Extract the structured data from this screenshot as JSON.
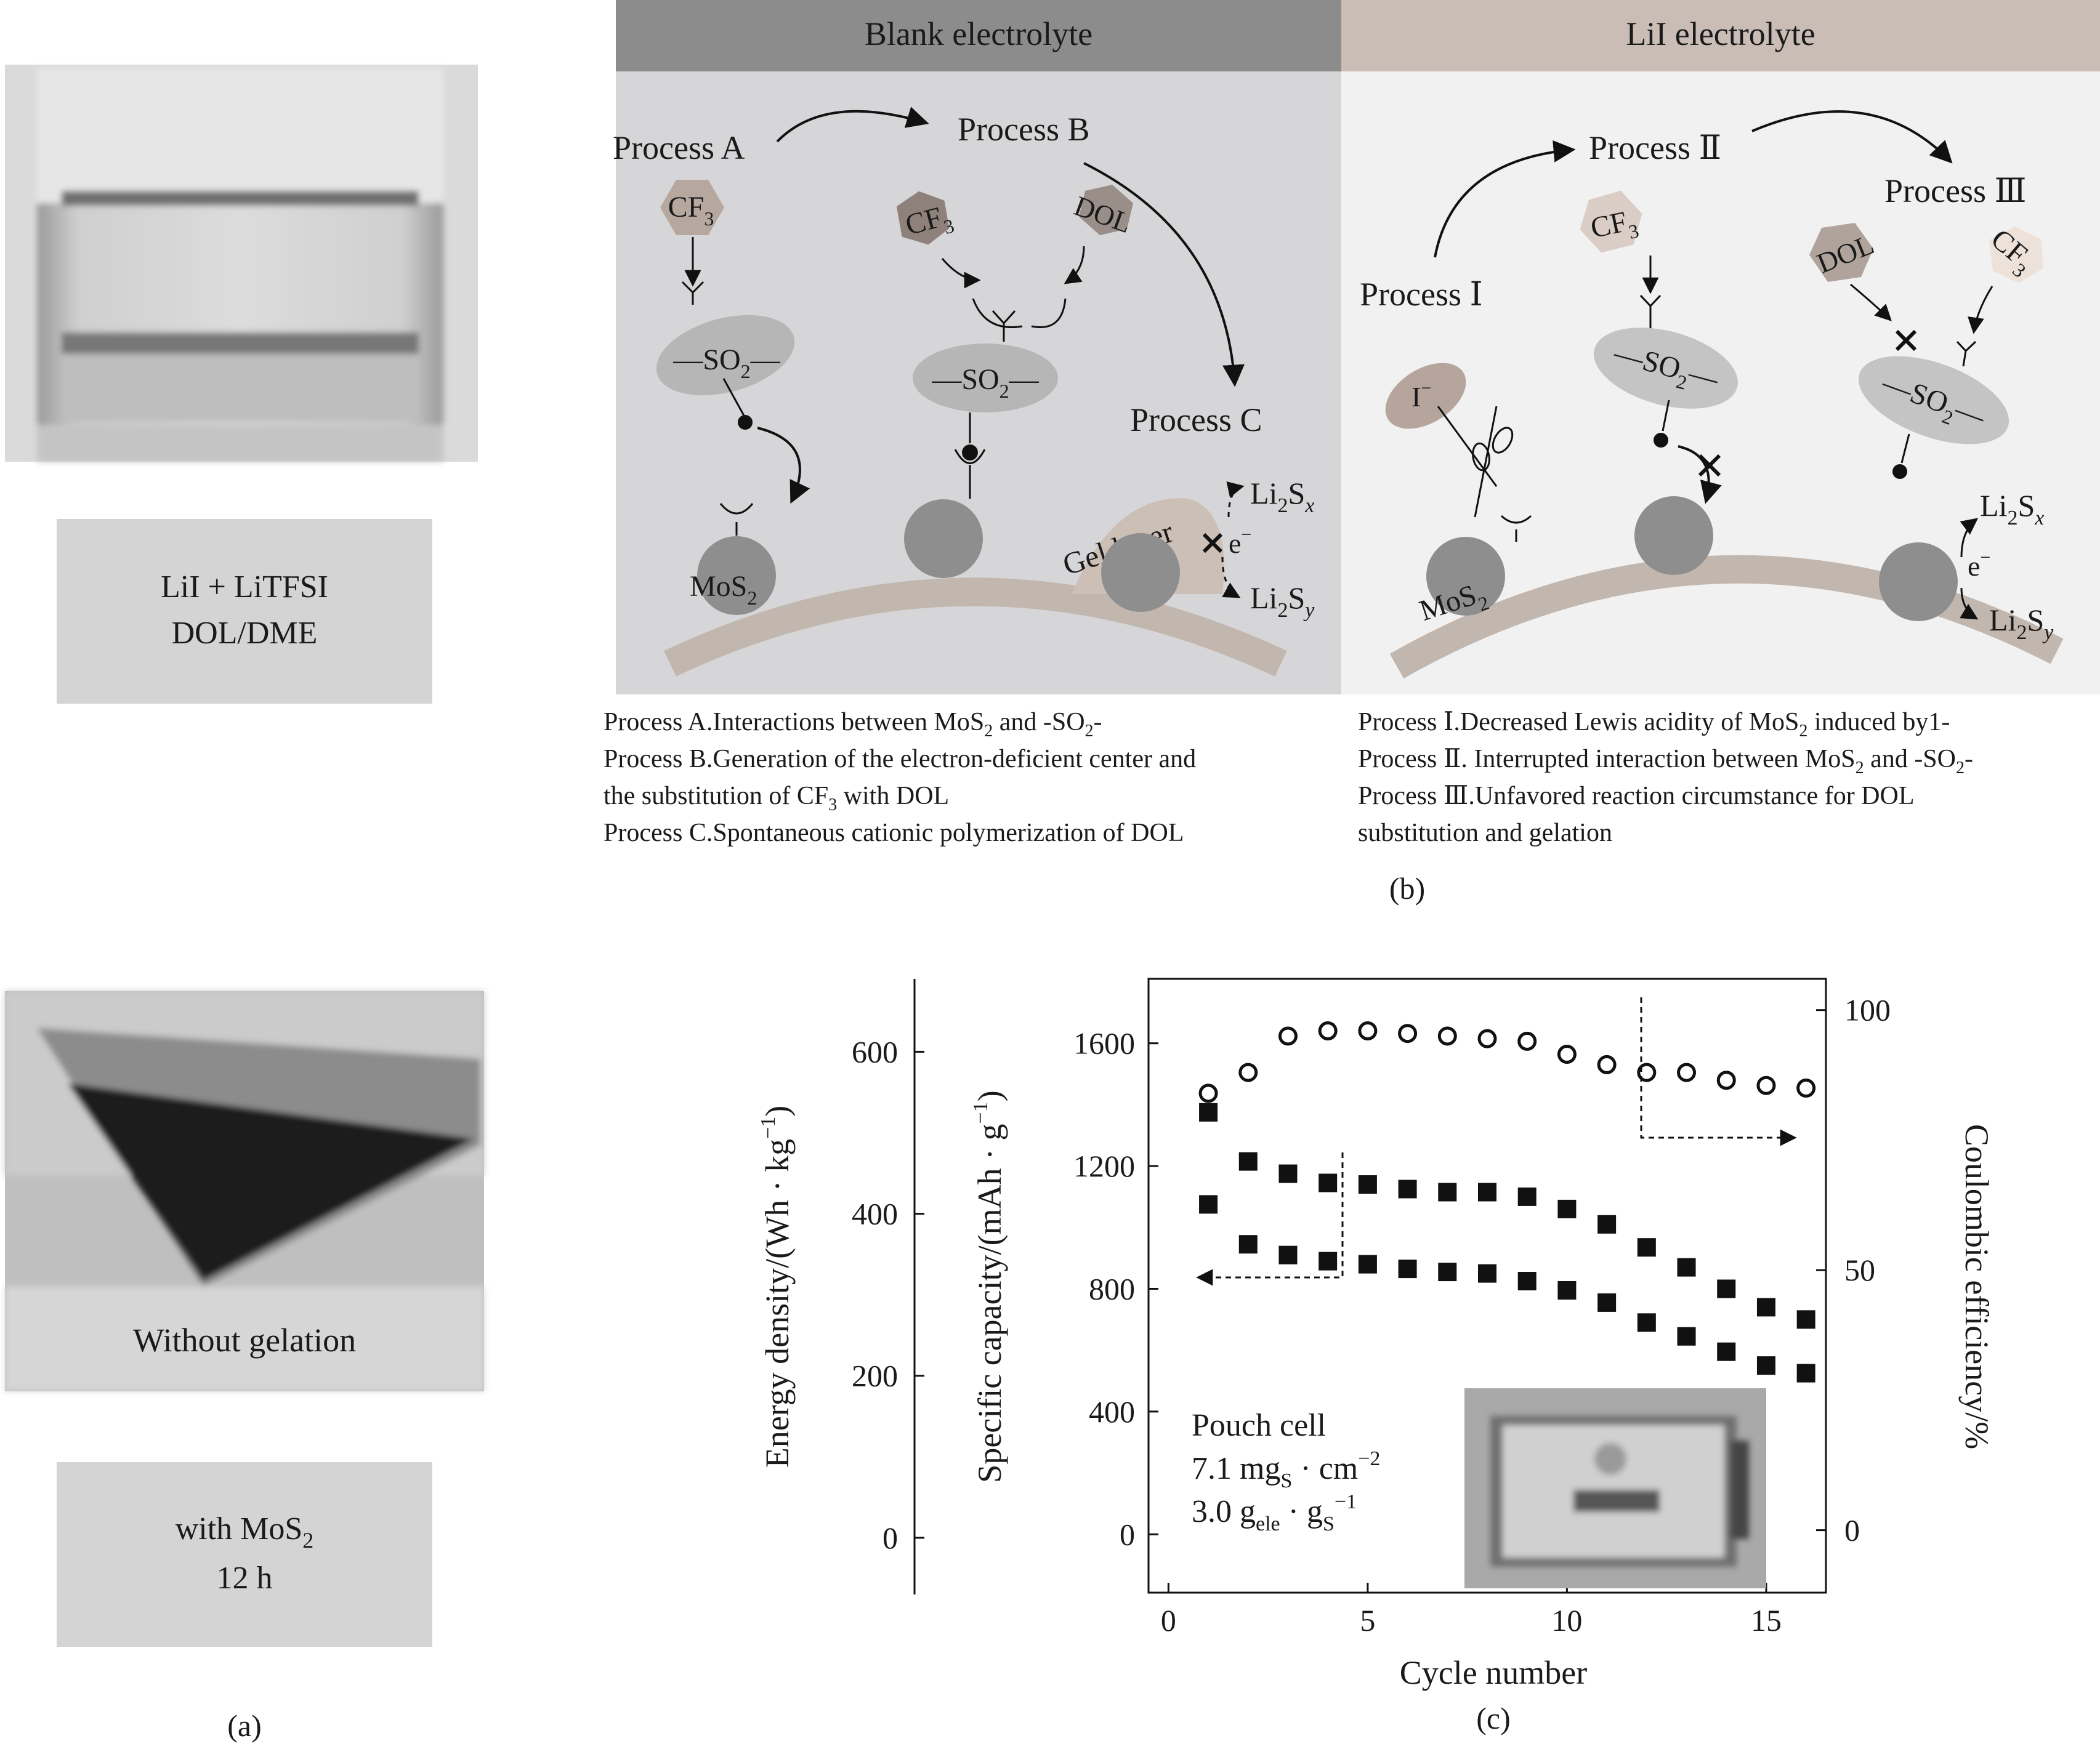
{
  "panel_a": {
    "vial_caption": [
      "LiI + LiTFSI",
      "DOL/DME"
    ],
    "photo2_caption": "Without gelation",
    "condition_caption": [
      "with MoS",
      "2",
      "12 h"
    ],
    "label": "(a)"
  },
  "panel_b": {
    "label": "(b)",
    "colors": {
      "blank_header": "#8c8c8c",
      "lii_header": "#c9bdb5",
      "blank_bg": "#d6d5d7",
      "lii_bg": "#f2f1f1"
    },
    "blank": {
      "header": "Blank electrolyte",
      "process_a": "Process A",
      "process_b": "Process B",
      "process_c": "Process C",
      "cf3": [
        "CF",
        "3"
      ],
      "dol": "DOL",
      "so2": [
        "—SO",
        "2",
        "—"
      ],
      "mos2": [
        "MoS",
        "2"
      ],
      "gel_layer": "Gel layer",
      "li2sx": [
        "Li",
        "2",
        "S",
        "x"
      ],
      "li2sy": [
        "Li",
        "2",
        "S",
        "y"
      ],
      "electron": [
        "e",
        "−"
      ]
    },
    "lii": {
      "header": "LiI electrolyte",
      "process_1": "Process Ⅰ",
      "process_2": "Process Ⅱ",
      "process_3": "Process Ⅲ",
      "cf3": [
        "CF",
        "3"
      ],
      "dol": "DOL",
      "iodide": [
        "I",
        "−"
      ],
      "so2": [
        "—SO",
        "2",
        "—"
      ],
      "mos2": [
        "MoS",
        "2"
      ],
      "li2sx": [
        "Li",
        "2",
        "S",
        "x"
      ],
      "li2sy": [
        "Li",
        "2",
        "S",
        "y"
      ],
      "electron": [
        "e",
        "−"
      ]
    },
    "notes_left": {
      "a": [
        "Process A.Interactions between MoS",
        "2",
        " and -SO",
        "2",
        "-"
      ],
      "b1": [
        "Process B.Generation of the electron-deficient center and"
      ],
      "b2": [
        "the substitution of CF",
        "3",
        " with DOL"
      ],
      "c": [
        "Process C.Spontaneous cationic polymerization of DOL"
      ]
    },
    "notes_right": {
      "p1": [
        "Process  Ⅰ.Decreased Lewis acidity of MoS",
        "2",
        " induced by1-"
      ],
      "p2": [
        "Process  Ⅱ. Interrupted interaction between MoS",
        "2",
        " and -SO",
        "2",
        "-"
      ],
      "p3a": [
        "Process  Ⅲ.Unfavored reaction circumstance for DOL"
      ],
      "p3b": [
        "substitution and gelation"
      ]
    }
  },
  "panel_c": {
    "label": "(c)",
    "xlabel": "Cycle number",
    "ylabel_capacity": "Specific capacity/(mAh · g",
    "ylabel_capacity_sup": "−1",
    "ylabel_energy": "Energy density/(Wh · kg",
    "ylabel_energy_sup": "−1",
    "ylabel_ce": "Coulombic efficiency/%",
    "inset": {
      "l1": "Pouch cell",
      "l2": [
        "7.1 mg",
        "S",
        " · cm",
        "−2"
      ],
      "l3": [
        "3.0 g",
        "ele",
        " · g",
        "S",
        "−1"
      ]
    },
    "x_ticks": [
      "0",
      "5",
      "10",
      "15"
    ],
    "cap_ticks": [
      "0",
      "400",
      "800",
      "1200",
      "1600"
    ],
    "energy_ticks": [
      "0",
      "200",
      "400",
      "600"
    ],
    "ce_ticks": [
      "0",
      "50",
      "100"
    ]
  },
  "chart_data": {
    "type": "scatter",
    "xlabel": "Cycle number",
    "ylabel": "Specific capacity/(mAh · g−1)",
    "xlim": [
      -0.5,
      16.5
    ],
    "ylim": [
      -190,
      1810
    ],
    "energy_axis": {
      "label": "Energy density/(Wh · kg−1)",
      "ylim": [
        -70,
        690
      ]
    },
    "secondary_ylim": [
      -12,
      106
    ],
    "secondary_ylabel": "Coulombic efficiency/%",
    "series": [
      {
        "marker": "filled-square",
        "axis": "capacity",
        "x": [
          1,
          2,
          3,
          4,
          5,
          6,
          7,
          8,
          9,
          10,
          11,
          12,
          13,
          14,
          15,
          16
        ],
        "y": [
          1375,
          1215,
          1175,
          1145,
          1140,
          1125,
          1115,
          1115,
          1100,
          1060,
          1010,
          935,
          870,
          800,
          740,
          700
        ]
      },
      {
        "marker": "filled-square",
        "axis": "capacity",
        "x": [
          1,
          2,
          3,
          4,
          5,
          6,
          7,
          8,
          9,
          10,
          11,
          12,
          13,
          14,
          15,
          16
        ],
        "y": [
          1075,
          945,
          910,
          890,
          880,
          865,
          855,
          850,
          825,
          795,
          755,
          690,
          645,
          595,
          550,
          525
        ]
      },
      {
        "marker": "open-circle",
        "axis": "coulombic_efficiency",
        "x": [
          1,
          2,
          3,
          4,
          5,
          6,
          7,
          8,
          9,
          10,
          11,
          12,
          13,
          14,
          15,
          16
        ],
        "y": [
          84,
          88,
          95,
          96,
          96,
          95.5,
          95,
          94.5,
          94,
          91.5,
          89.5,
          88,
          88,
          86.5,
          85.5,
          85
        ]
      }
    ],
    "grid": false
  }
}
